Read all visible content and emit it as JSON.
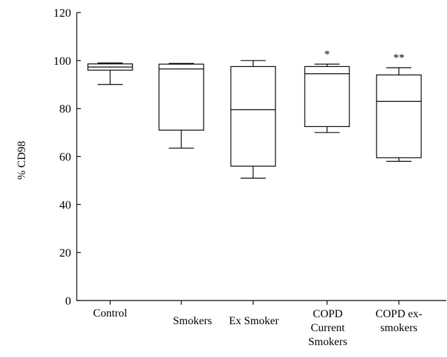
{
  "chart_data": {
    "type": "boxplot",
    "ylabel": "% CD98",
    "ylim": [
      0,
      120
    ],
    "yticks": [
      0,
      20,
      40,
      60,
      80,
      100,
      120
    ],
    "grid": false,
    "legend": "none",
    "categories": [
      {
        "label_lines": [
          "Control"
        ],
        "min": 90,
        "q1": 96,
        "median": 97.3,
        "q3": 98.6,
        "max": 99,
        "annotation": ""
      },
      {
        "label_lines": [
          "Smokers"
        ],
        "min": 63.5,
        "q1": 71,
        "median": 96.5,
        "q3": 98.5,
        "max": 98.8,
        "annotation": ""
      },
      {
        "label_lines": [
          "Ex Smoker"
        ],
        "min": 51,
        "q1": 56,
        "median": 79.5,
        "q3": 97.5,
        "max": 100,
        "annotation": ""
      },
      {
        "label_lines": [
          "COPD",
          "Current",
          "Smokers"
        ],
        "min": 70,
        "q1": 72.5,
        "median": 94.5,
        "q3": 97.5,
        "max": 98.5,
        "annotation": "*"
      },
      {
        "label_lines": [
          "COPD ex-",
          "smokers"
        ],
        "min": 58,
        "q1": 59.5,
        "median": 83,
        "q3": 94,
        "max": 97,
        "annotation": "**"
      }
    ]
  }
}
